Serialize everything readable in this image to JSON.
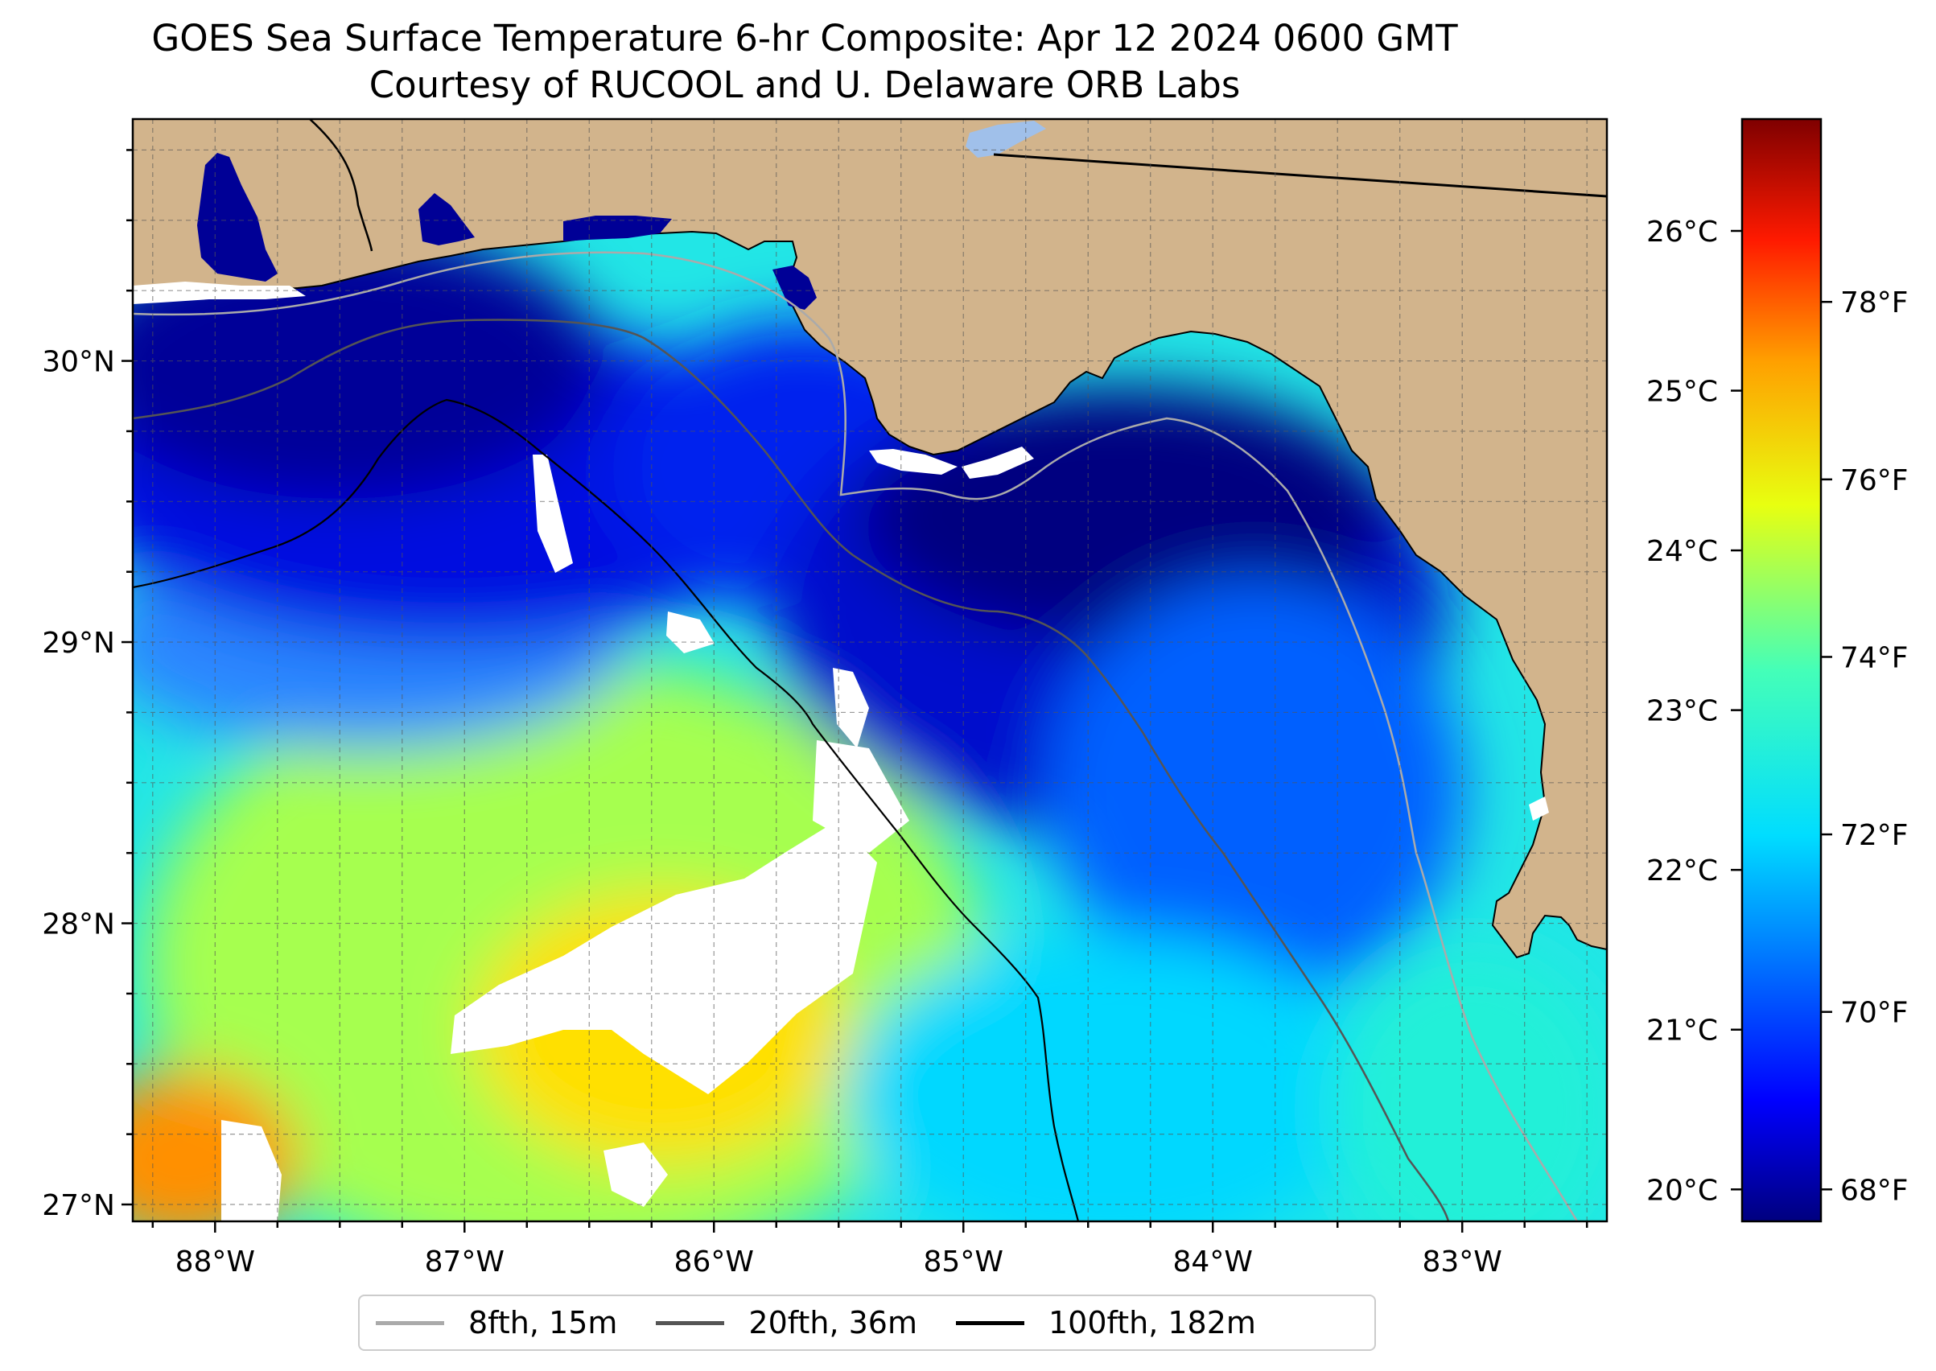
{
  "title": {
    "line1": "GOES Sea Surface Temperature 6-hr Composite: Apr 12 2024 0600 GMT",
    "line2": "Courtesy of RUCOOL and U. Delaware ORB Labs"
  },
  "map": {
    "lon_range": [
      -88.33,
      -82.42
    ],
    "lat_range": [
      26.94,
      30.86
    ],
    "lon_ticks": [
      {
        "value": -88,
        "label": "88°W"
      },
      {
        "value": -87,
        "label": "87°W"
      },
      {
        "value": -86,
        "label": "86°W"
      },
      {
        "value": -85,
        "label": "85°W"
      },
      {
        "value": -84,
        "label": "84°W"
      },
      {
        "value": -83,
        "label": "83°W"
      }
    ],
    "lat_ticks": [
      {
        "value": 27,
        "label": "27°N"
      },
      {
        "value": 28,
        "label": "28°N"
      },
      {
        "value": 29,
        "label": "29°N"
      },
      {
        "value": 30,
        "label": "30°N"
      }
    ],
    "gridlines": true,
    "colors": {
      "land": "#d2b48c",
      "cloud_mask": "#ffffff",
      "state_line": "#000000"
    }
  },
  "colorbar": {
    "colormap": "jet",
    "range_c": [
      19.8,
      26.7
    ],
    "celsius_ticks": [
      {
        "value": 20,
        "label": "20°C"
      },
      {
        "value": 21,
        "label": "21°C"
      },
      {
        "value": 22,
        "label": "22°C"
      },
      {
        "value": 23,
        "label": "23°C"
      },
      {
        "value": 24,
        "label": "24°C"
      },
      {
        "value": 25,
        "label": "25°C"
      },
      {
        "value": 26,
        "label": "26°C"
      }
    ],
    "fahrenheit_ticks": [
      {
        "value": 68,
        "label": "68°F"
      },
      {
        "value": 70,
        "label": "70°F"
      },
      {
        "value": 72,
        "label": "72°F"
      },
      {
        "value": 74,
        "label": "74°F"
      },
      {
        "value": 76,
        "label": "76°F"
      },
      {
        "value": 78,
        "label": "78°F"
      }
    ]
  },
  "legend": {
    "items": [
      {
        "label": "8fth, 15m",
        "color": "#aaaaaa"
      },
      {
        "label": "20fth, 36m",
        "color": "#555555"
      },
      {
        "label": "100fth, 182m",
        "color": "#000000"
      }
    ]
  }
}
